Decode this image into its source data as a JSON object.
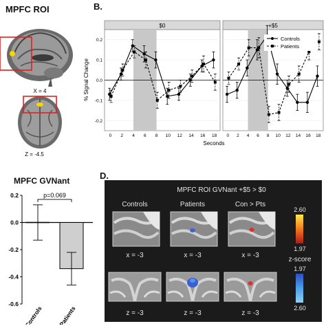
{
  "panelA": {
    "title": "MPFC ROI",
    "sagittal_label": "X = 4",
    "axial_label": "Z = -4.5"
  },
  "panelB": {
    "letter": "B.",
    "chart_data": {
      "type": "line",
      "facets": [
        "$0",
        "+$5"
      ],
      "x": [
        0,
        2,
        4,
        6,
        8,
        10,
        12,
        14,
        16,
        18
      ],
      "x_tick_labels": [
        "0",
        "2",
        "4",
        "6",
        "8",
        "10",
        "12",
        "14",
        "16",
        "18"
      ],
      "xlabel": "Seconds",
      "ylabel": "% Signal Change",
      "ylim": [
        -0.25,
        0.25
      ],
      "y_ticks": [
        -0.2,
        -0.1,
        0.0,
        0.1,
        0.2
      ],
      "y_tick_labels": [
        "-0.2",
        "-0.1",
        "0.0",
        "0.1",
        "0.2"
      ],
      "shaded_x": [
        4,
        8
      ],
      "legend_position": "top-right",
      "series": [
        {
          "name": "Controls",
          "style": "solid",
          "values_$0": [
            -0.07,
            0.03,
            0.17,
            0.13,
            0.1,
            -0.08,
            -0.07,
            0.0,
            0.07,
            0.1
          ],
          "errors_$0": [
            0.03,
            0.03,
            0.03,
            0.04,
            0.04,
            0.04,
            0.03,
            0.03,
            0.03,
            0.04
          ],
          "values_+$5": [
            -0.07,
            -0.05,
            0.06,
            0.15,
            0.22,
            0.03,
            -0.04,
            -0.11,
            -0.11,
            0.02
          ],
          "errors_+$5": [
            0.04,
            0.04,
            0.04,
            0.05,
            0.05,
            0.05,
            0.04,
            0.04,
            0.05,
            0.05
          ]
        },
        {
          "name": "Patients",
          "style": "dashed",
          "values_$0": [
            -0.08,
            0.05,
            0.14,
            0.1,
            -0.1,
            -0.05,
            -0.03,
            0.02,
            0.08,
            -0.01
          ],
          "errors_$0": [
            0.03,
            0.03,
            0.03,
            0.04,
            0.04,
            0.04,
            0.03,
            0.03,
            0.04,
            0.04
          ],
          "values_+$5": [
            0.01,
            0.08,
            0.16,
            0.16,
            -0.17,
            -0.16,
            -0.02,
            0.03,
            0.14,
            0.19
          ],
          "errors_+$5": [
            0.03,
            0.03,
            0.04,
            0.05,
            0.04,
            0.04,
            0.04,
            0.04,
            0.04,
            0.04
          ]
        }
      ]
    }
  },
  "panelC": {
    "title": "MPFC GVNant",
    "chart_data": {
      "type": "bar",
      "categories": [
        "Controls",
        "Patients"
      ],
      "values": [
        0.0,
        -0.34
      ],
      "errors": [
        0.13,
        0.12
      ],
      "ylim": [
        -0.6,
        0.2
      ],
      "y_ticks": [
        -0.6,
        -0.4,
        -0.2,
        0.0,
        0.2
      ],
      "y_tick_labels": [
        "-0.6",
        "-0.4",
        "-0.2",
        "0.0",
        "0.2"
      ],
      "annotation": "p=0.069"
    }
  },
  "panelD": {
    "letter": "D.",
    "title": "MPFC ROI GVNant +$5 > $0",
    "columns": [
      "Controls",
      "Patients",
      "Con > Pts"
    ],
    "row1_label": "x = -3",
    "row2_label": "z = -3",
    "scale_hot": {
      "max": "2.60",
      "min": "1.97",
      "colors": [
        "#ffe94a",
        "#f07a1c",
        "#b01818"
      ]
    },
    "scale_cool": {
      "max": "1.97",
      "min": "2.60",
      "colors": [
        "#2d4ec0",
        "#4aa0e8",
        "#8fd0f4"
      ]
    },
    "scale_label": "z-score"
  }
}
